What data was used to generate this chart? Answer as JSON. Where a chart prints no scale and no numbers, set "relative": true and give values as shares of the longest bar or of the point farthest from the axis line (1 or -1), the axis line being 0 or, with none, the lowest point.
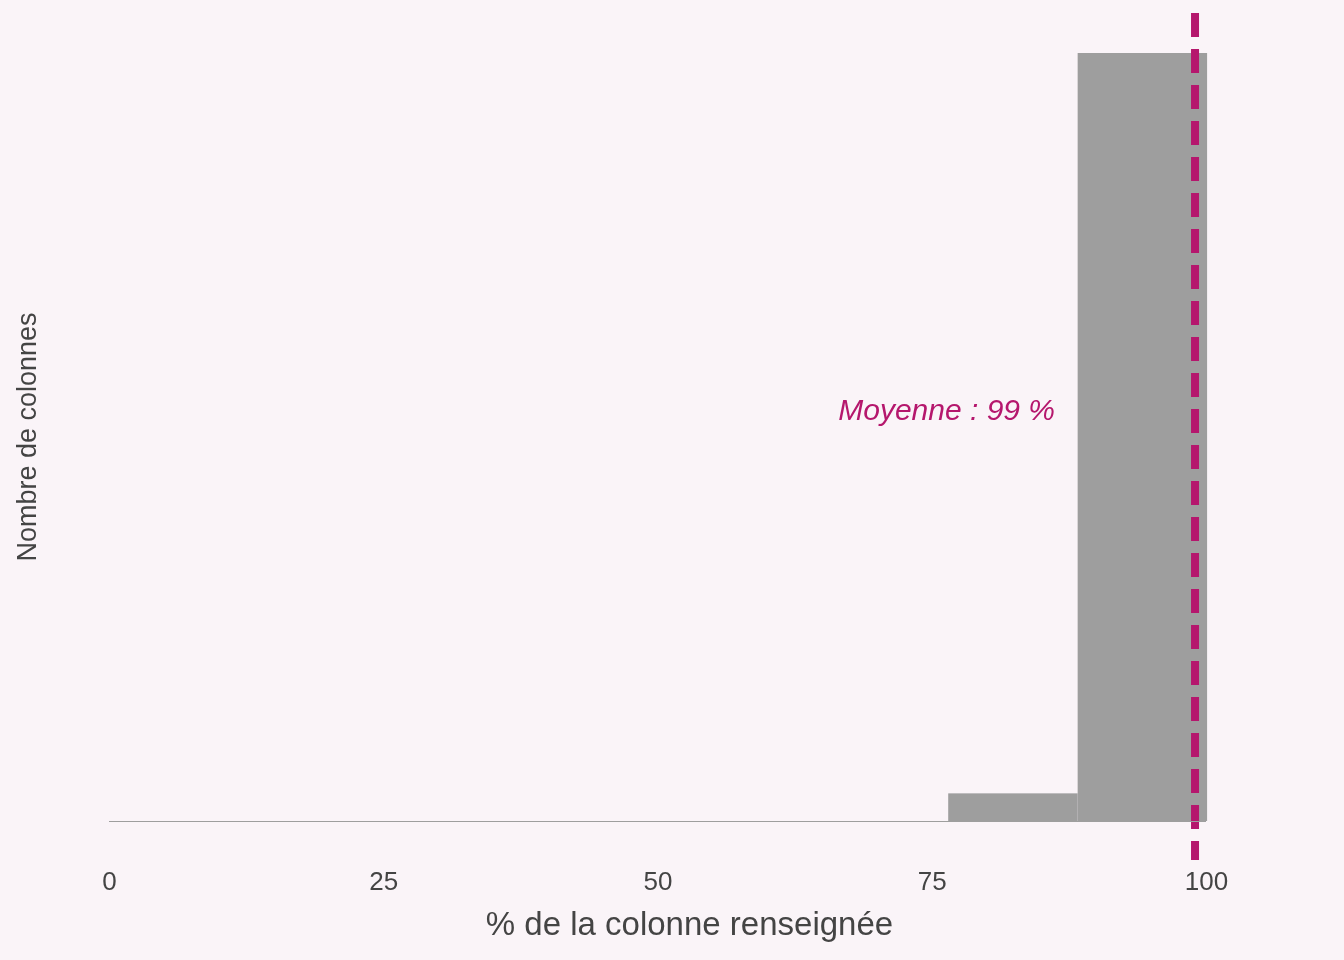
{
  "chart_data": {
    "type": "bar",
    "xlabel": "% de la colonne renseignée",
    "ylabel": "Nombre de colonnes",
    "x": [
      82.4,
      94.2
    ],
    "values": [
      0.036,
      1
    ],
    "relative": true,
    "color": "#9e9e9e",
    "xlim": [
      0,
      100
    ],
    "xticks": [
      0,
      25,
      50,
      75,
      100
    ],
    "grid": false,
    "ref_lines": [
      {
        "axis": "x",
        "value": 99,
        "label": "Moyenne : 99 %",
        "color": "#b5176d",
        "line_style": "dashed"
      }
    ]
  }
}
